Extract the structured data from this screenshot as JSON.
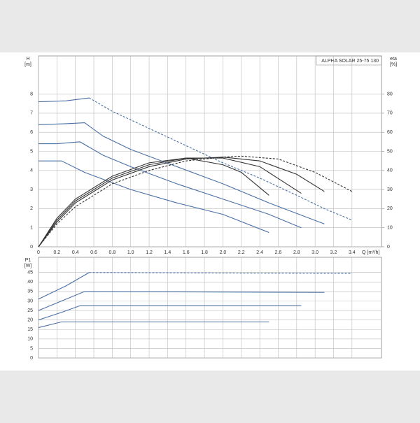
{
  "chart_data": [
    {
      "type": "line",
      "title": "ALPHA SOLAR 25-75  130",
      "ylabel": [
        "H",
        "[m]"
      ],
      "y2label": [
        "eta",
        "[%]"
      ],
      "xlabel": "Q [m³/h]",
      "xlim": [
        0,
        3.72
      ],
      "ylim": [
        0,
        10
      ],
      "y2lim": [
        0,
        100
      ],
      "xticks": [
        0,
        0.2,
        0.4,
        0.6,
        0.8,
        {
          "value": 1,
          "label": "1.0"
        },
        1.2,
        1.4,
        1.6,
        1.8,
        {
          "value": 2,
          "label": "2.0"
        },
        2.2,
        2.4,
        2.6,
        2.8,
        {
          "value": 3,
          "label": "3.0"
        },
        3.2,
        3.4
      ],
      "yticks": [
        0,
        1,
        2,
        3,
        4,
        5,
        6,
        7,
        8
      ],
      "y2ticks": [
        0,
        10,
        20,
        30,
        40,
        50,
        60,
        70,
        80
      ],
      "grid": true,
      "series": [
        {
          "color": "#4a6fa5",
          "x": [
            0,
            0.3,
            0.55
          ],
          "values": [
            7.6,
            7.65,
            7.8
          ]
        },
        {
          "color": "#4a6fa5",
          "dashed": true,
          "x": [
            0.55,
            0.8,
            1.2,
            1.6,
            2.0,
            2.4,
            2.8,
            3.1,
            3.4
          ],
          "values": [
            7.8,
            7.1,
            6.2,
            5.3,
            4.4,
            3.6,
            2.7,
            2.0,
            1.4
          ]
        },
        {
          "color": "#4a6fa5",
          "x": [
            0,
            0.3,
            0.5,
            0.7,
            1.0,
            1.5,
            2.0,
            2.5,
            3.1
          ],
          "values": [
            6.4,
            6.45,
            6.5,
            5.8,
            5.1,
            4.2,
            3.3,
            2.3,
            1.2
          ]
        },
        {
          "color": "#4a6fa5",
          "x": [
            0,
            0.2,
            0.45,
            0.7,
            1.0,
            1.5,
            2.0,
            2.5,
            2.85
          ],
          "values": [
            5.4,
            5.4,
            5.5,
            4.8,
            4.2,
            3.3,
            2.5,
            1.7,
            1.0
          ]
        },
        {
          "color": "#4a6fa5",
          "x": [
            0,
            0.25,
            0.5,
            1.0,
            1.5,
            2.0,
            2.5
          ],
          "values": [
            4.5,
            4.5,
            3.9,
            3.0,
            2.3,
            1.7,
            0.75
          ]
        },
        {
          "color": "#333333",
          "dashed": true,
          "axis": "y2",
          "x": [
            0,
            0.2,
            0.4,
            0.8,
            1.2,
            1.6,
            2.0,
            2.2,
            2.6,
            3.0,
            3.4
          ],
          "values": [
            0,
            12,
            21,
            33,
            40,
            45,
            47,
            47.5,
            46,
            39,
            29
          ]
        },
        {
          "color": "#333333",
          "axis": "y2",
          "x": [
            0,
            0.2,
            0.4,
            0.8,
            1.2,
            1.6,
            2.0,
            2.4,
            2.8,
            3.1
          ],
          "values": [
            0,
            13,
            23,
            35,
            42,
            46,
            47,
            45,
            38,
            29
          ]
        },
        {
          "color": "#333333",
          "axis": "y2",
          "x": [
            0,
            0.2,
            0.4,
            0.8,
            1.2,
            1.6,
            2.0,
            2.4,
            2.85
          ],
          "values": [
            0,
            14,
            24,
            36,
            43,
            46.5,
            46.5,
            42,
            28
          ]
        },
        {
          "color": "#333333",
          "axis": "y2",
          "x": [
            0,
            0.2,
            0.4,
            0.8,
            1.2,
            1.6,
            2.0,
            2.2,
            2.5
          ],
          "values": [
            0,
            15,
            25,
            37,
            44,
            46.5,
            43,
            39,
            27
          ]
        }
      ]
    },
    {
      "type": "line",
      "ylabel": [
        "P1",
        "[W]"
      ],
      "xlim": [
        0,
        3.72
      ],
      "ylim": [
        0,
        53
      ],
      "xticks": [
        0,
        0.2,
        0.4,
        0.6,
        0.8,
        1,
        1.2,
        1.4,
        1.6,
        1.8,
        2,
        2.2,
        2.4,
        2.6,
        2.8,
        3,
        3.2,
        3.4
      ],
      "xtick_labels": false,
      "yticks": [
        0,
        5,
        10,
        15,
        20,
        25,
        30,
        35,
        40,
        45
      ],
      "grid": true,
      "series": [
        {
          "color": "#4a6fa5",
          "x": [
            0,
            0.3,
            0.55
          ],
          "values": [
            31,
            38,
            45
          ]
        },
        {
          "color": "#4a6fa5",
          "dashed": true,
          "x": [
            0.55,
            3.4
          ],
          "values": [
            45,
            44.5
          ]
        },
        {
          "color": "#4a6fa5",
          "x": [
            0,
            0.25,
            0.5,
            3.1
          ],
          "values": [
            25,
            30,
            35,
            34.5
          ]
        },
        {
          "color": "#4a6fa5",
          "x": [
            0,
            0.25,
            0.45,
            2.85
          ],
          "values": [
            20,
            24,
            27.5,
            27.5
          ]
        },
        {
          "color": "#4a6fa5",
          "x": [
            0,
            0.25,
            2.5
          ],
          "values": [
            16,
            19,
            19
          ]
        }
      ]
    }
  ]
}
